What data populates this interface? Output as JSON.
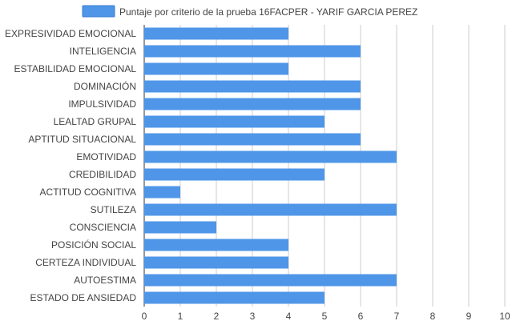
{
  "chart_data": {
    "type": "bar",
    "orientation": "horizontal",
    "categories": [
      "EXPRESIVIDAD EMOCIONAL",
      "INTELIGENCIA",
      "ESTABILIDAD EMOCIONAL",
      "DOMINACIÓN",
      "IMPULSIVIDAD",
      "LEALTAD GRUPAL",
      "APTITUD SITUACIONAL",
      "EMOTIVIDAD",
      "CREDIBILIDAD",
      "ACTITUD COGNITIVA",
      "SUTILEZA",
      "CONSCIENCIA",
      "POSICIÓN SOCIAL",
      "CERTEZA INDIVIDUAL",
      "AUTOESTIMA",
      "ESTADO DE ANSIEDAD"
    ],
    "series": [
      {
        "name": "Puntaje por criterio de la prueba 16FACPER - YARIF GARCIA PEREZ",
        "values": [
          4,
          6,
          4,
          6,
          6,
          5,
          6,
          7,
          5,
          1,
          7,
          2,
          4,
          4,
          7,
          5
        ],
        "color": "#4f96e8"
      }
    ],
    "xlim": [
      0,
      10
    ],
    "xticks": [
      "0",
      "1",
      "2",
      "3",
      "4",
      "5",
      "6",
      "7",
      "8",
      "9",
      "10"
    ],
    "grid": true,
    "legend_position": "top"
  }
}
